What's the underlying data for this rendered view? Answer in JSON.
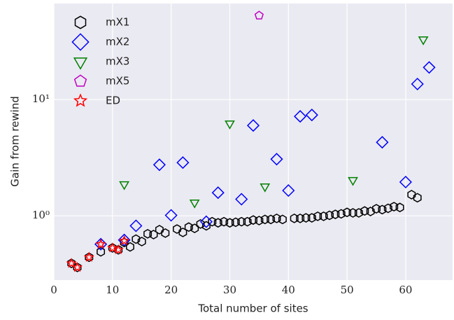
{
  "chart_data": {
    "type": "scatter",
    "x_label": "Total number of sites",
    "y_label": "Gain from rewind",
    "xlim": [
      0,
      68
    ],
    "ylim": [
      0.28,
      67
    ],
    "log_y": true,
    "grid": true,
    "legend": "upper left",
    "xticks": [
      0,
      10,
      20,
      30,
      40,
      50,
      60
    ],
    "yticks": [
      {
        "value": 1,
        "label": "10⁰"
      },
      {
        "value": 10,
        "label": "10¹"
      }
    ],
    "series": [
      {
        "name": "mX1",
        "color": "#000000",
        "marker": "hexagon",
        "x": [
          3,
          4,
          6,
          8,
          10,
          11,
          12,
          13,
          14,
          15,
          16,
          17,
          18,
          19,
          21,
          22,
          23,
          24,
          25,
          26,
          27,
          28,
          29,
          30,
          31,
          32,
          33,
          34,
          35,
          36,
          37,
          38,
          39,
          41,
          42,
          43,
          44,
          45,
          46,
          47,
          48,
          49,
          50,
          51,
          52,
          53,
          54,
          55,
          56,
          57,
          58,
          59,
          61,
          62
        ],
        "values": [
          0.39,
          0.36,
          0.44,
          0.49,
          0.53,
          0.51,
          0.59,
          0.54,
          0.63,
          0.6,
          0.7,
          0.69,
          0.76,
          0.71,
          0.77,
          0.72,
          0.8,
          0.78,
          0.85,
          0.82,
          0.89,
          0.87,
          0.89,
          0.87,
          0.88,
          0.89,
          0.89,
          0.92,
          0.91,
          0.93,
          0.93,
          0.95,
          0.93,
          0.95,
          0.95,
          0.96,
          0.96,
          0.99,
          0.99,
          1.01,
          1.03,
          1.04,
          1.07,
          1.06,
          1.06,
          1.1,
          1.09,
          1.15,
          1.13,
          1.16,
          1.2,
          1.18,
          1.52,
          1.43
        ]
      },
      {
        "name": "mX2",
        "color": "#0000ff",
        "marker": "diamond",
        "x": [
          8,
          12,
          14,
          18,
          20,
          22,
          26,
          28,
          32,
          34,
          38,
          40,
          42,
          44,
          56,
          60,
          62,
          64
        ],
        "values": [
          0.57,
          0.62,
          0.82,
          2.75,
          1.01,
          2.87,
          0.89,
          1.58,
          1.39,
          5.98,
          3.07,
          1.65,
          7.17,
          7.37,
          4.29,
          1.95,
          13.6,
          18.9
        ]
      },
      {
        "name": "mX3",
        "color": "#008000",
        "marker": "triangle-down",
        "x": [
          12,
          24,
          30,
          36,
          51,
          63
        ],
        "values": [
          1.87,
          1.3,
          6.22,
          1.79,
          2.03,
          32.9
        ]
      },
      {
        "name": "mX5",
        "color": "#c000c0",
        "marker": "pentagon",
        "x": [
          35
        ],
        "values": [
          52.8
        ]
      },
      {
        "name": "ED",
        "color": "#ff0000",
        "marker": "star",
        "x": [
          3,
          4,
          6,
          8,
          10,
          11,
          12
        ],
        "values": [
          0.39,
          0.36,
          0.44,
          0.57,
          0.53,
          0.51,
          0.61
        ]
      }
    ]
  }
}
